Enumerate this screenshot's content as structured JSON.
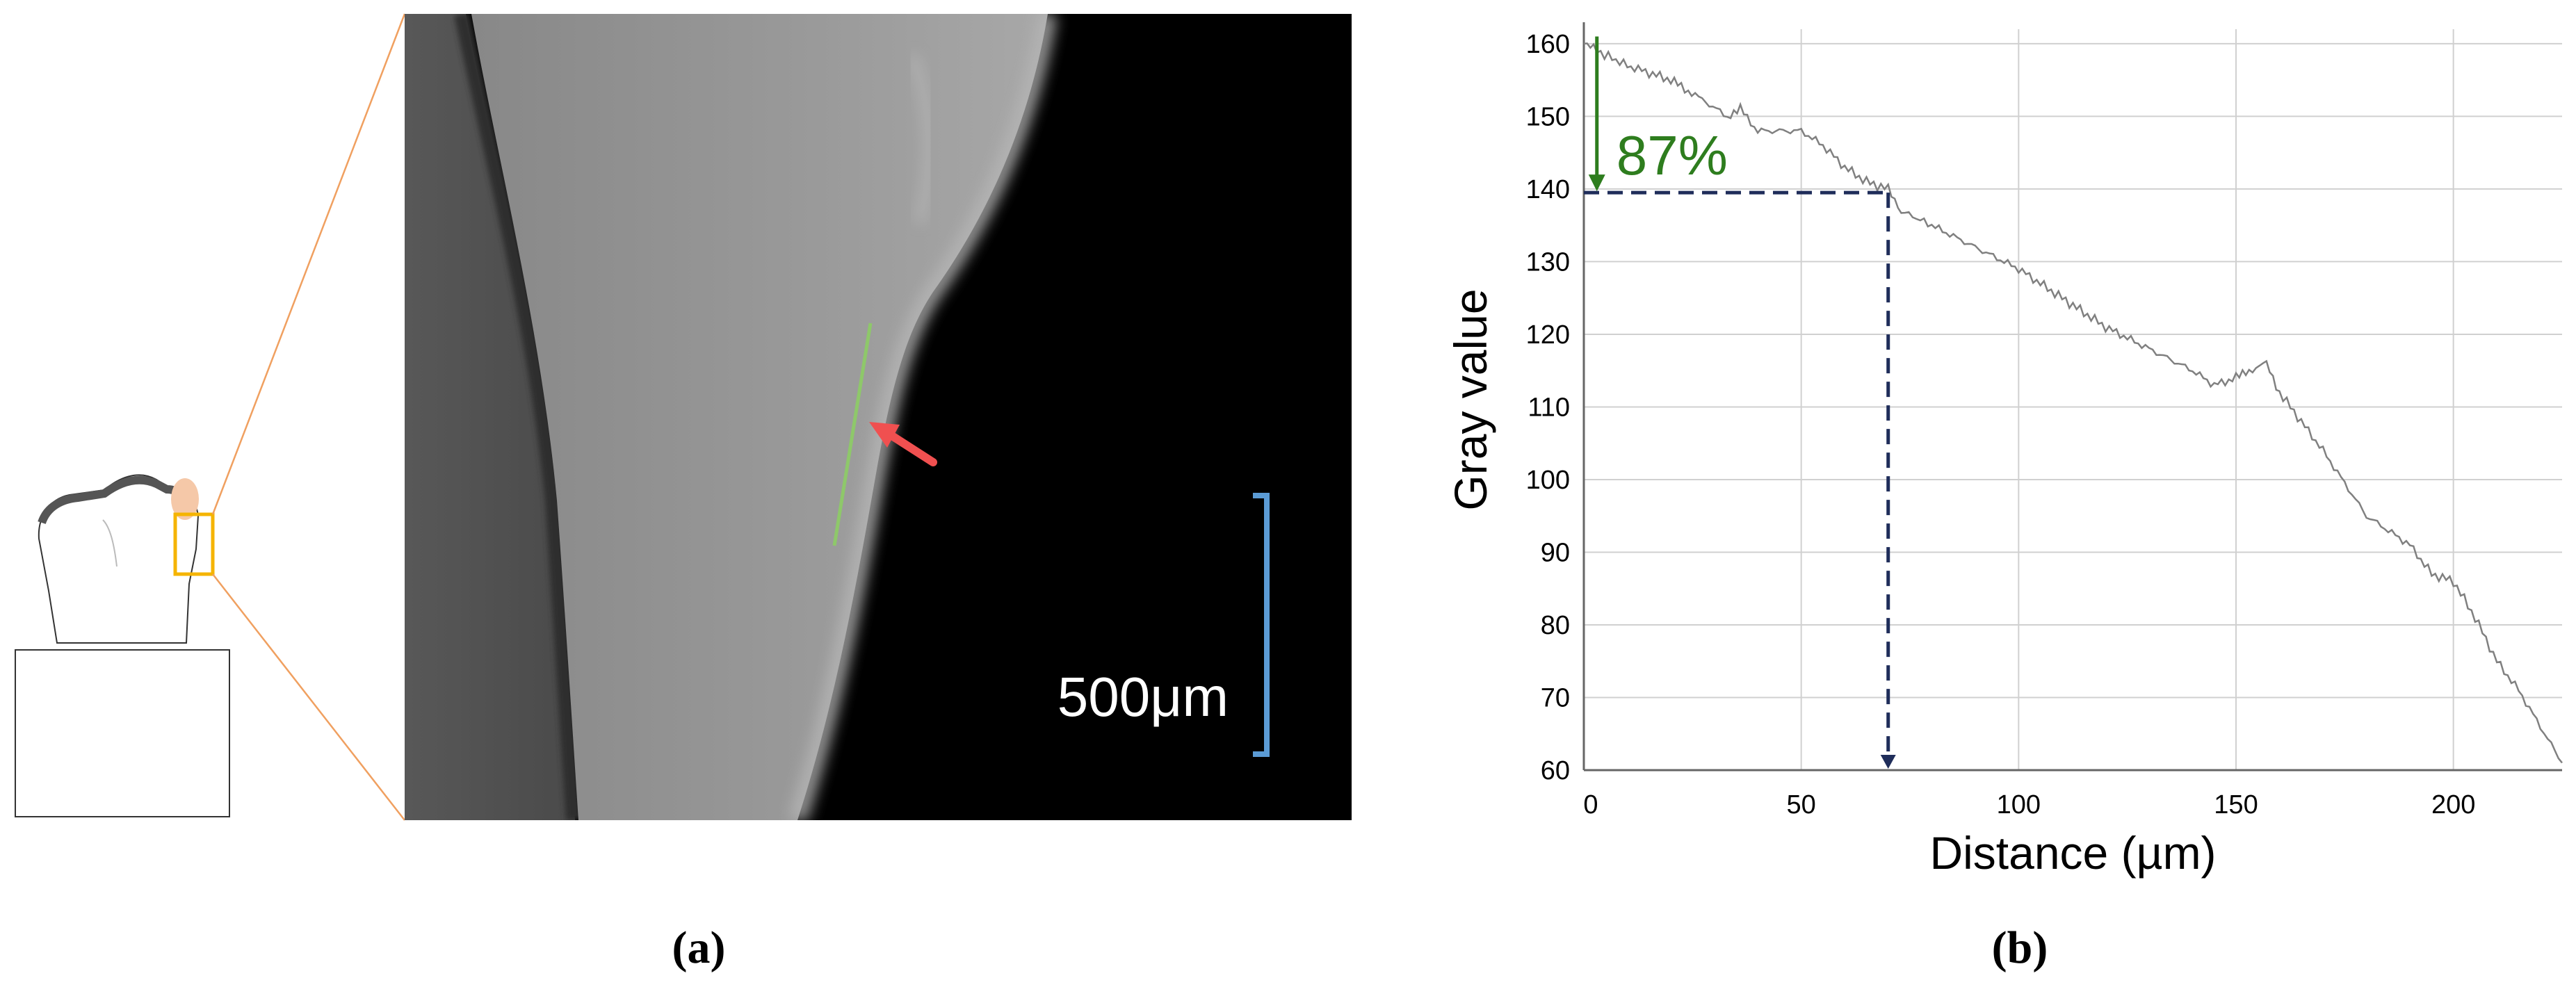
{
  "panel_a": {
    "label": "(a)",
    "scale_bar_label": "500μm",
    "colors": {
      "zoom_lines": "#f0a060",
      "roi_box": "#f5b400",
      "highlight": "#f5c8a8",
      "profile_line": "#8ec86a",
      "arrow": "#f05050",
      "scale_bar": "#5b9bd5"
    }
  },
  "panel_b": {
    "label": "(b)",
    "annotation_percent": "87%",
    "colors": {
      "curve": "#808080",
      "annotation_green": "#2e7d1e",
      "dashed_navy": "#1f2d5a",
      "grid": "#d0d0d0"
    }
  },
  "chart_data": {
    "type": "line",
    "xlabel": "Distance (µm)",
    "ylabel": "Gray value",
    "xlim": [
      0,
      225
    ],
    "ylim": [
      60,
      162
    ],
    "x_ticks": [
      0,
      50,
      100,
      150,
      200
    ],
    "y_ticks": [
      60,
      70,
      80,
      90,
      100,
      110,
      120,
      130,
      140,
      150,
      160
    ],
    "grid": true,
    "series": [
      {
        "x": [
          0,
          3,
          10,
          20,
          28,
          33,
          36,
          40,
          45,
          50,
          55,
          60,
          65,
          70,
          73,
          80,
          90,
          100,
          110,
          120,
          130,
          140,
          145,
          150,
          153,
          157,
          160,
          170,
          180,
          190,
          195,
          200,
          205,
          210,
          215,
          220,
          225
        ],
        "y": [
          160,
          159,
          157,
          155,
          152,
          150,
          151,
          148,
          148,
          148,
          146,
          143,
          141,
          140,
          137,
          135,
          132,
          129,
          125,
          121,
          118,
          115,
          113,
          114,
          115,
          116,
          112,
          104,
          95,
          91,
          87,
          86,
          81,
          75,
          71,
          66,
          61
        ]
      }
    ],
    "annotations": {
      "reference_peak": 160,
      "threshold_value": 139.5,
      "threshold_distance": 70,
      "percent_text": "87%"
    }
  }
}
